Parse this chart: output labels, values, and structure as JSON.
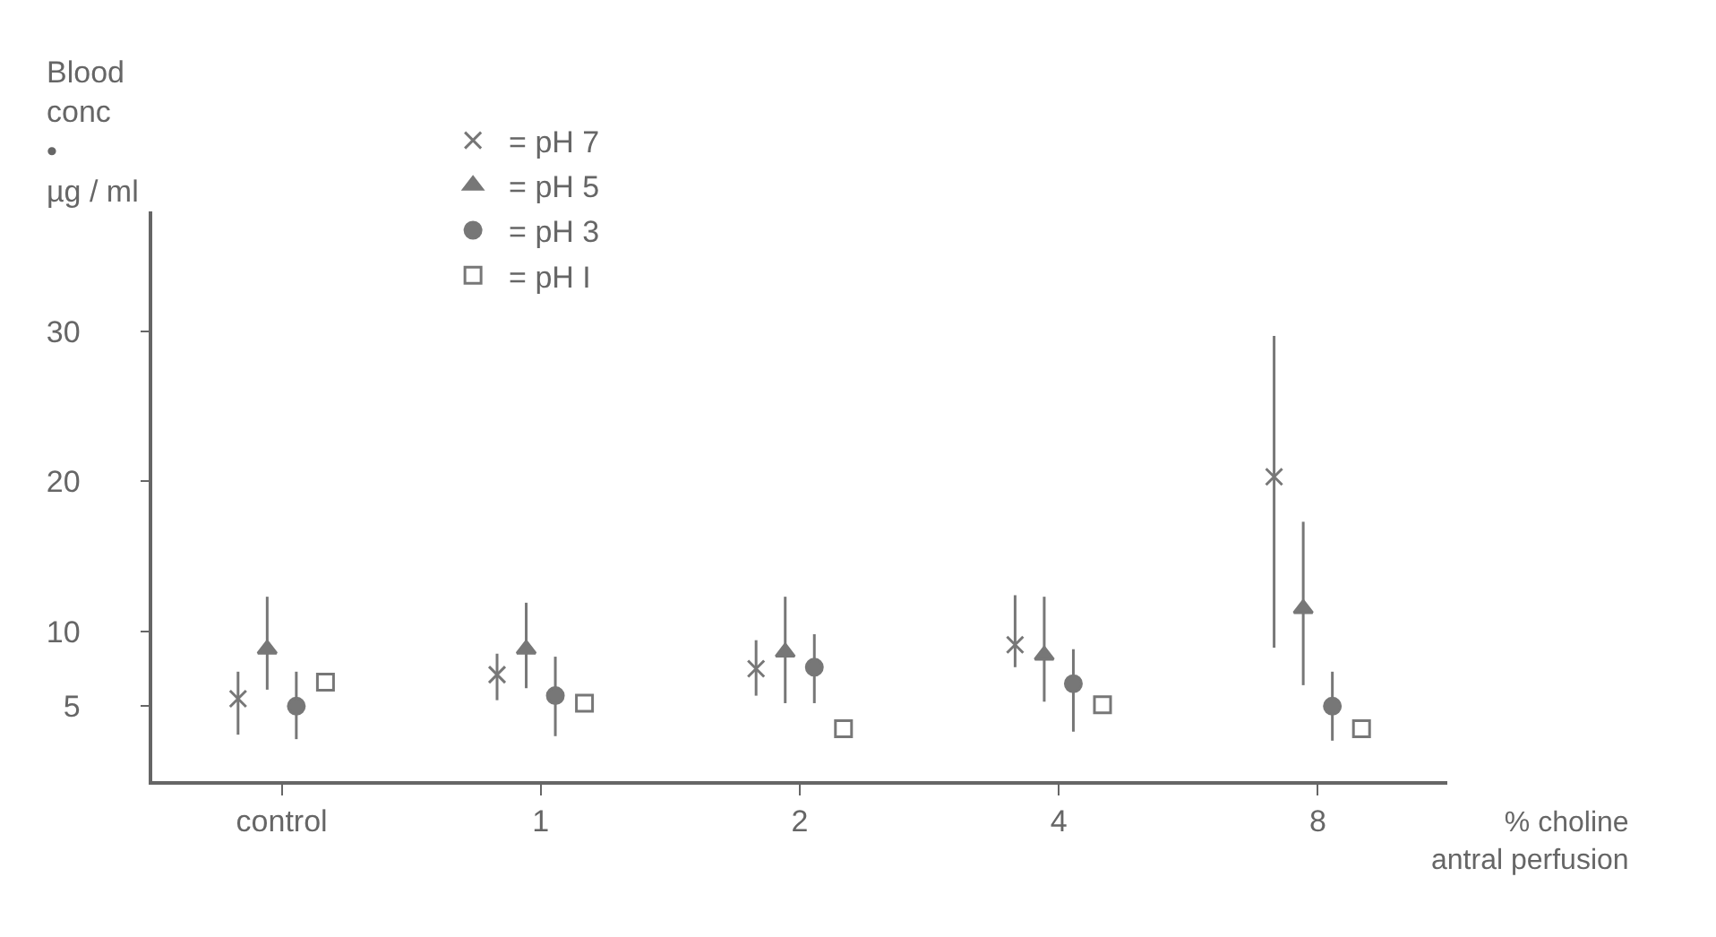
{
  "chart_data": {
    "type": "scatter",
    "ylabel": "Blood\nconc\n•\nµg / ml",
    "xlabel": "% choline\nantral perfusion",
    "categories": [
      "control",
      "1",
      "2",
      "4",
      "8"
    ],
    "ylim": [
      0,
      38
    ],
    "yticks": [
      5,
      10,
      20,
      30
    ],
    "legend": "top left",
    "series": [
      {
        "name": "= pH 7",
        "color": "#777777",
        "marker": "cross",
        "values": [
          5.5,
          7.1,
          7.5,
          9.1,
          20.3
        ],
        "errors": [
          [
            3.1,
            7.3
          ],
          [
            5.4,
            8.5
          ],
          [
            5.7,
            9.4
          ],
          [
            7.6,
            12.4
          ],
          [
            8.9,
            29.7
          ]
        ]
      },
      {
        "name": "= pH 5",
        "color": "#777777",
        "marker": "triangle",
        "values": [
          8.8,
          8.8,
          8.6,
          8.4,
          11.5
        ],
        "errors": [
          [
            6.1,
            12.3
          ],
          [
            6.2,
            11.9
          ],
          [
            5.2,
            12.3
          ],
          [
            5.3,
            12.3
          ],
          [
            6.4,
            17.3
          ]
        ]
      },
      {
        "name": "= pH 3",
        "color": "#777777",
        "marker": "circle",
        "values": [
          5.0,
          5.7,
          7.6,
          6.5,
          5.0
        ],
        "errors": [
          [
            2.8,
            7.3
          ],
          [
            3.0,
            8.3
          ],
          [
            5.2,
            9.8
          ],
          [
            3.3,
            8.8
          ],
          [
            2.7,
            7.3
          ]
        ]
      },
      {
        "name": "= pH I",
        "color": "#777777",
        "marker": "square",
        "values": [
          6.6,
          5.2,
          3.5,
          5.1,
          3.5
        ]
      }
    ]
  }
}
